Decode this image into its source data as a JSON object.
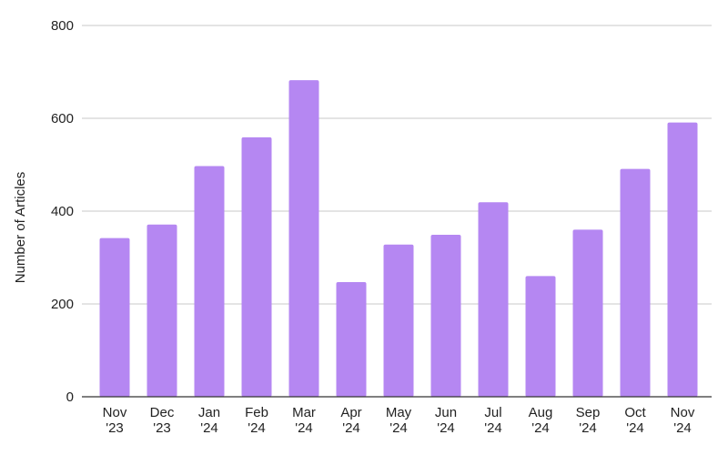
{
  "chart_data": {
    "type": "bar",
    "title": "",
    "xlabel": "",
    "ylabel": "Number of Articles",
    "ylim": [
      0,
      800
    ],
    "yticks": [
      0,
      200,
      400,
      600,
      800
    ],
    "grid": true,
    "legend": "none",
    "bar_color": "#b587f2",
    "categories": [
      [
        "Nov",
        "'23"
      ],
      [
        "Dec",
        "'23"
      ],
      [
        "Jan",
        "'24"
      ],
      [
        "Feb",
        "'24"
      ],
      [
        "Mar",
        "'24"
      ],
      [
        "Apr",
        "'24"
      ],
      [
        "May",
        "'24"
      ],
      [
        "Jun",
        "'24"
      ],
      [
        "Jul",
        "'24"
      ],
      [
        "Aug",
        "'24"
      ],
      [
        "Sep",
        "'24"
      ],
      [
        "Oct",
        "'24"
      ],
      [
        "Nov",
        "'24"
      ]
    ],
    "values": [
      342,
      371,
      497,
      559,
      682,
      247,
      328,
      349,
      419,
      260,
      360,
      491,
      591
    ]
  }
}
